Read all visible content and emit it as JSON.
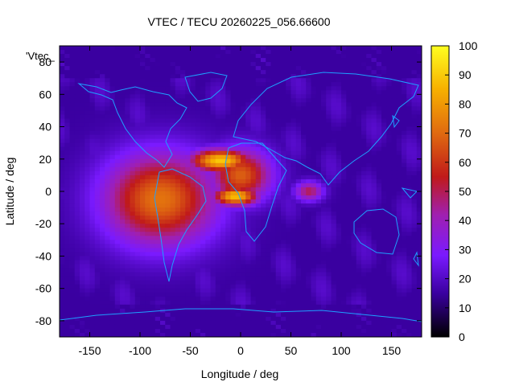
{
  "chart_data": {
    "type": "heatmap",
    "title": "VTEC / TECU 20260225_056.66600",
    "xlabel": "Longitude / deg",
    "ylabel": "Latitude / deg",
    "xlim": [
      -180,
      180
    ],
    "ylim": [
      -90,
      90
    ],
    "xticks": [
      -150,
      -100,
      -50,
      0,
      50,
      100,
      150
    ],
    "yticks": [
      -80,
      -60,
      -40,
      -20,
      0,
      20,
      40,
      60,
      80
    ],
    "colorbar": {
      "range": [
        0,
        100
      ],
      "ticks": [
        0,
        10,
        20,
        30,
        40,
        50,
        60,
        70,
        80,
        90,
        100
      ],
      "palette": "black-purple-red-orange-yellow"
    },
    "grid": {
      "lon_step": 5,
      "lat_step": 2.5
    },
    "legend_entry": "'Vtec_",
    "legend_placement": "top-left",
    "overlay": "continent outlines (cyan)",
    "coastline_color": "#1ea0ff",
    "features": [
      {
        "name": "main-equatorial-anomaly",
        "lon": -80,
        "lat": -5,
        "peak_tecu": 72,
        "width_lon": 55,
        "width_lat": 28
      },
      {
        "name": "north-crest",
        "lon": -20,
        "lat": 19,
        "peak_tecu": 90,
        "width_lon": 30,
        "width_lat": 7
      },
      {
        "name": "south-crest",
        "lon": -5,
        "lat": -3,
        "peak_tecu": 88,
        "width_lon": 22,
        "width_lat": 6
      },
      {
        "name": "atlantic-extension",
        "lon": 0,
        "lat": 10,
        "peak_tecu": 68,
        "width_lon": 30,
        "width_lat": 16
      },
      {
        "name": "indian-ocean-patch",
        "lon": 68,
        "lat": 0,
        "peak_tecu": 50,
        "width_lon": 14,
        "width_lat": 6
      },
      {
        "name": "background",
        "lon": 0,
        "lat": 0,
        "peak_tecu": 15,
        "width_lon": 0,
        "width_lat": 0
      }
    ]
  }
}
